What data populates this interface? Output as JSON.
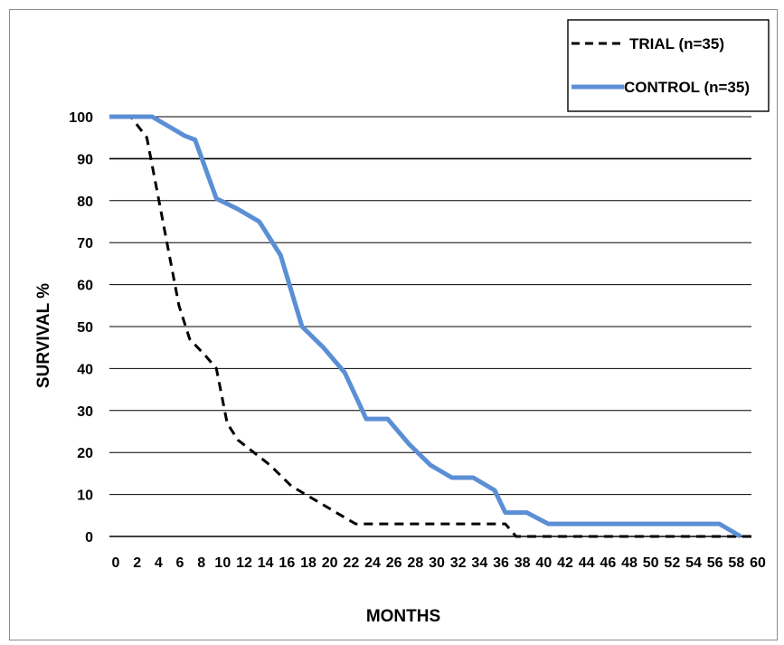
{
  "chart_data": {
    "type": "line",
    "title": "",
    "xlabel": "MONTHS",
    "ylabel": "SURVIVAL  %",
    "ylim": [
      0,
      100
    ],
    "xlim": [
      0,
      60
    ],
    "grid": "horizontal",
    "legend_position": "top-right",
    "x_ticks": [
      "0",
      "2",
      "4",
      "6",
      "8",
      "10",
      "12",
      "14",
      "16",
      "18",
      "20",
      "22",
      "24",
      "26",
      "28",
      "30",
      "32",
      "34",
      "36",
      "38",
      "40",
      "42",
      "44",
      "46",
      "48",
      "50",
      "52",
      "54",
      "56",
      "58",
      "60"
    ],
    "y_ticks": [
      "0",
      "10",
      "20",
      "30",
      "40",
      "50",
      "60",
      "70",
      "80",
      "90",
      "100"
    ],
    "series": [
      {
        "name": "TRIAL (n=35)",
        "color": "#000000",
        "style": "dashed",
        "points": [
          [
            0,
            100
          ],
          [
            2,
            100
          ],
          [
            3.5,
            95
          ],
          [
            5,
            75
          ],
          [
            6.5,
            55
          ],
          [
            7.5,
            47
          ],
          [
            9,
            43
          ],
          [
            10,
            40
          ],
          [
            11,
            27
          ],
          [
            12,
            23
          ],
          [
            14,
            19
          ],
          [
            15,
            17
          ],
          [
            17,
            12
          ],
          [
            19,
            9
          ],
          [
            21,
            6
          ],
          [
            23,
            3
          ],
          [
            34,
            3
          ],
          [
            37,
            3
          ],
          [
            38,
            0
          ],
          [
            60,
            0
          ]
        ]
      },
      {
        "name": "CONTROL (n=35)",
        "color": "#5b8fd5",
        "style": "solid",
        "points": [
          [
            0,
            100
          ],
          [
            4,
            100
          ],
          [
            5,
            98.5
          ],
          [
            6,
            97
          ],
          [
            7,
            95.5
          ],
          [
            8,
            94.5
          ],
          [
            10,
            80.5
          ],
          [
            12,
            78
          ],
          [
            14,
            75
          ],
          [
            16,
            67
          ],
          [
            18,
            50
          ],
          [
            20,
            45
          ],
          [
            22,
            39
          ],
          [
            24,
            28
          ],
          [
            26,
            28
          ],
          [
            28,
            22
          ],
          [
            30,
            17
          ],
          [
            32,
            14
          ],
          [
            34,
            14
          ],
          [
            36,
            11
          ],
          [
            37,
            5.7
          ],
          [
            39,
            5.7
          ],
          [
            41,
            3
          ],
          [
            57,
            3
          ],
          [
            59,
            0
          ]
        ]
      }
    ]
  }
}
